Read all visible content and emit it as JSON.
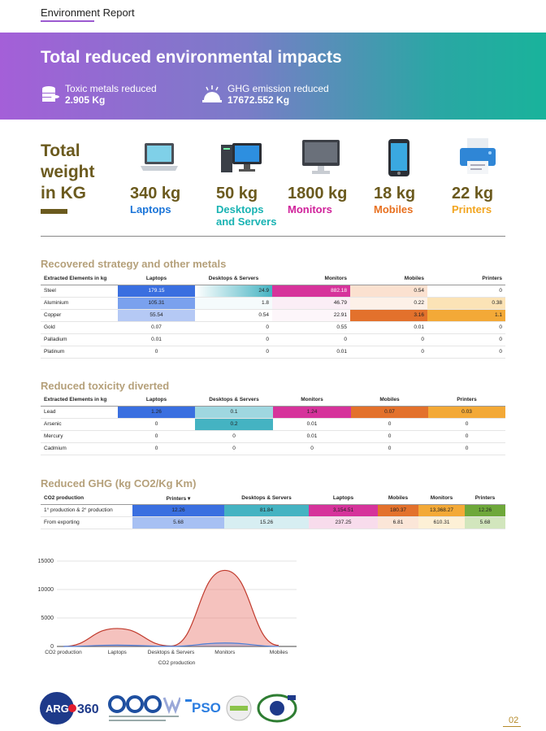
{
  "header": {
    "title": "Environment Report"
  },
  "banner": {
    "title": "Total reduced environmental impacts",
    "toxic_label": "Toxic metals reduced",
    "toxic_value": "2.905 Kg",
    "ghg_label": "GHG emission reduced",
    "ghg_value": "17672.552 Kg"
  },
  "totals": {
    "heading_1": "Total",
    "heading_2": "weight",
    "heading_3": "in KG",
    "devices": [
      {
        "weight": "340 kg",
        "name": "Laptops",
        "color": "#1a74d8",
        "icon": "laptop-icon"
      },
      {
        "weight": "50 kg",
        "name_1": "Desktops",
        "name_2": "and Servers",
        "color": "#19b3b3",
        "icon": "desktop-icon"
      },
      {
        "weight": "1800 kg",
        "name": "Monitors",
        "color": "#d0219a",
        "icon": "monitor-icon"
      },
      {
        "weight": "18 kg",
        "name": "Mobiles",
        "color": "#e8701f",
        "icon": "mobile-icon"
      },
      {
        "weight": "22 kg",
        "name": "Printers",
        "color": "#f2a51f",
        "icon": "printer-icon"
      }
    ]
  },
  "strategic": {
    "title": "Recovered strategy and other metals",
    "headers": [
      "Extracted Elements in kg",
      "Laptops",
      "Desktops & Servers",
      "Monitors",
      "Mobiles",
      "Printers"
    ],
    "rows": [
      [
        "Steel",
        "179.15",
        "24.9",
        "882.18",
        "0.54",
        "0"
      ],
      [
        "Aluminium",
        "105.31",
        "1.8",
        "46.79",
        "0.22",
        "0.38"
      ],
      [
        "Copper",
        "55.54",
        "0.54",
        "22.91",
        "3.16",
        "1.1"
      ],
      [
        "Gold",
        "0.07",
        "0",
        "0.55",
        "0.01",
        "0"
      ],
      [
        "Palladium",
        "0.01",
        "0",
        "0",
        "0",
        "0"
      ],
      [
        "Platinum",
        "0",
        "0",
        "0.01",
        "0",
        "0"
      ]
    ]
  },
  "toxicity": {
    "title": "Reduced toxicity diverted",
    "headers": [
      "Extracted Elements in kg",
      "Laptops",
      "Desktops & Servers",
      "Monitors",
      "Mobiles",
      "Printers"
    ],
    "rows": [
      [
        "Lead",
        "1.26",
        "0.1",
        "1.24",
        "0.07",
        "0.03"
      ],
      [
        "Arsenic",
        "0",
        "0.2",
        "0.01",
        "0",
        "0"
      ],
      [
        "Mercury",
        "0",
        "0",
        "0.01",
        "0",
        "0"
      ],
      [
        "Cadmium",
        "0",
        "0",
        "0",
        "0",
        "0"
      ]
    ]
  },
  "ghg": {
    "title": "Reduced GHG (kg CO2/Kg Km)",
    "headers": [
      "CO2 production",
      "Printers ▾",
      "Desktops & Servers",
      "Laptops",
      "Mobiles",
      "Monitors",
      "Printers"
    ],
    "rows": [
      [
        "1° production & 2° production",
        "12.26",
        "81.84",
        "3,154.51",
        "180.37",
        "13,368.27",
        "12.26"
      ],
      [
        "From exporting",
        "5.68",
        "15.26",
        "237.25",
        "6.81",
        "610.31",
        "5.68"
      ]
    ]
  },
  "chart_data": {
    "type": "area",
    "categories": [
      "CO2 production",
      "Laptops",
      "Desktops & Servers",
      "Monitors",
      "Mobiles"
    ],
    "series": [
      {
        "values": [
          0,
          3154.51,
          81.84,
          13368.27,
          180.37
        ],
        "color": "#e8776f"
      },
      {
        "values": [
          0,
          237.25,
          15.26,
          610.31,
          6.81
        ],
        "color": "#4a7fd8"
      }
    ],
    "xlabel": "CO2 production",
    "ylabel": "",
    "ylim": [
      0,
      15000
    ],
    "yticks": [
      "0",
      "5000",
      "10000",
      "15000"
    ]
  },
  "footer": {
    "logo": "ARG360",
    "page": "02"
  }
}
